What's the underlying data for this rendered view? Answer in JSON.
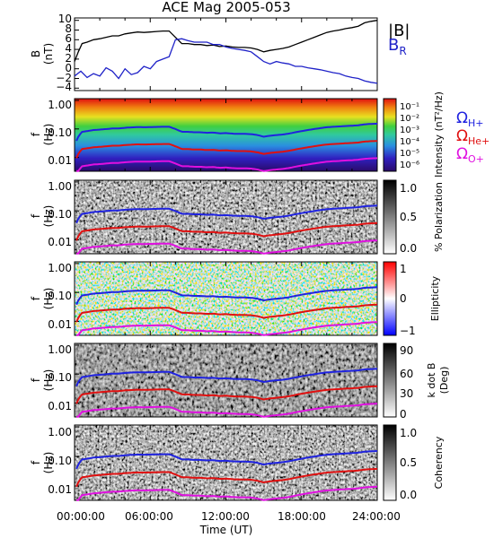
{
  "chart_data": {
    "title": "ACE Mag 2005-053",
    "type": "composite",
    "x": {
      "label": "Time (UT)",
      "range_hours": [
        0,
        24
      ],
      "tick_labels": [
        "00:00:00",
        "06:00:00",
        "12:00:00",
        "18:00:00",
        "24:00:00"
      ]
    },
    "panels": [
      {
        "type": "line",
        "ylabel": "B",
        "yunit": "(nT)",
        "ylim": [
          -4.5,
          10.5
        ],
        "yticks": [
          "10",
          "8",
          "6",
          "4",
          "2",
          "0",
          "−2",
          "−4"
        ],
        "yticks_values": [
          10,
          8,
          6,
          4,
          2,
          0,
          -2,
          -4
        ],
        "series": [
          {
            "name": "|B|",
            "color": "#000000",
            "x": [
              0,
              0.3,
              0.6,
              1,
              1.5,
              2,
              2.5,
              3,
              3.5,
              4,
              4.5,
              5,
              5.5,
              6,
              6.5,
              7,
              7.5,
              8,
              8.5,
              9,
              9.5,
              10,
              10.5,
              11,
              11.5,
              12,
              12.5,
              13,
              13.5,
              14,
              14.5,
              15,
              15.5,
              16,
              16.5,
              17,
              17.5,
              18,
              18.5,
              19,
              19.5,
              20,
              20.5,
              21,
              21.5,
              22,
              22.5,
              23,
              23.5,
              24
            ],
            "y": [
              1.5,
              3.5,
              5.2,
              5.5,
              6.0,
              6.2,
              6.5,
              6.8,
              6.8,
              7.2,
              7.4,
              7.6,
              7.5,
              7.6,
              7.7,
              7.8,
              7.8,
              6.5,
              5.2,
              5.2,
              5.0,
              5.0,
              4.8,
              4.9,
              4.6,
              4.7,
              4.5,
              4.4,
              4.4,
              4.3,
              4.0,
              3.5,
              3.8,
              4.0,
              4.2,
              4.5,
              5.0,
              5.5,
              6.0,
              6.5,
              7.0,
              7.5,
              7.8,
              8.0,
              8.3,
              8.5,
              8.8,
              9.5,
              9.8,
              10.0
            ]
          },
          {
            "name": "B_R",
            "color": "#1f22c8",
            "x": [
              0,
              0.5,
              1,
              1.5,
              2,
              2.5,
              3,
              3.5,
              4,
              4.5,
              5,
              5.5,
              6,
              6.5,
              7,
              7.5,
              8,
              8.5,
              9,
              9.5,
              10,
              10.5,
              11,
              11.5,
              12,
              12.5,
              13,
              13.5,
              14,
              14.5,
              15,
              15.5,
              16,
              16.5,
              17,
              17.5,
              18,
              18.5,
              19,
              19.5,
              20,
              20.5,
              21,
              21.5,
              22,
              22.5,
              23,
              23.5,
              24
            ],
            "y": [
              -1.5,
              -0.5,
              -1.8,
              -1.0,
              -1.5,
              0.2,
              -0.5,
              -2.0,
              0.0,
              -1.2,
              -0.8,
              0.5,
              0.0,
              1.5,
              2.0,
              2.5,
              6.0,
              6.2,
              5.8,
              5.5,
              5.5,
              5.5,
              5.0,
              5.0,
              4.5,
              4.2,
              4.0,
              3.8,
              3.5,
              2.5,
              1.5,
              1.0,
              1.5,
              1.2,
              1.0,
              0.5,
              0.5,
              0.2,
              0.0,
              -0.2,
              -0.5,
              -0.8,
              -1.0,
              -1.5,
              -1.8,
              -2.0,
              -2.5,
              -2.8,
              -3.0
            ]
          }
        ]
      },
      {
        "type": "heatmap",
        "quantity": "power",
        "ylabel": "f",
        "yunit": "(Hz)",
        "cbar_label": "Intensity (nT²/Hz)",
        "cbar_ticks": [
          "10⁻¹",
          "10⁻²",
          "10⁻³",
          "10⁻⁴",
          "10⁻⁵",
          "10⁻⁶"
        ]
      },
      {
        "type": "heatmap",
        "quantity": "polarization",
        "ylabel": "f",
        "yunit": "(Hz)",
        "cbar_label": "% Polarization",
        "cbar_ticks": [
          "1.0",
          "0.5",
          "0.0"
        ]
      },
      {
        "type": "heatmap",
        "quantity": "ellipticity",
        "ylabel": "f",
        "yunit": "(Hz)",
        "cbar_label": "Ellipticity",
        "cbar_ticks": [
          "1",
          "0",
          "−1"
        ]
      },
      {
        "type": "heatmap",
        "quantity": "angle",
        "ylabel": "f",
        "yunit": "(Hz)",
        "cbar_label": "k dot B",
        "cbar_unit": "(Deg)",
        "cbar_ticks": [
          "90",
          "60",
          "30",
          "0"
        ]
      },
      {
        "type": "heatmap",
        "quantity": "coherency",
        "ylabel": "f",
        "yunit": "(Hz)",
        "cbar_label": "Coherency",
        "cbar_ticks": [
          "1.0",
          "0.5",
          "0.0"
        ]
      }
    ],
    "spectrogram_yticks": [
      "1.00",
      "0.10",
      "0.01"
    ],
    "spectrogram_yticks_values": [
      1,
      0.1,
      0.01
    ],
    "spectrogram_ylim_hz": [
      0.0033,
      1.15
    ],
    "gyrofrequency_lines": [
      {
        "name": "Ω_H+",
        "label_base": "Ω",
        "label_sub": "H+",
        "color": "#1f22e0",
        "factor": 0.01525
      },
      {
        "name": "Ω_He+",
        "label_base": "Ω",
        "label_sub": "He+",
        "color": "#e01010",
        "factor": 0.0038
      },
      {
        "name": "Ω_O+",
        "label_base": "Ω",
        "label_sub": "O+",
        "color": "#e010e0",
        "factor": 0.00095
      }
    ],
    "legend": [
      {
        "text": "|B|",
        "sub": "",
        "color": "#000000"
      },
      {
        "text": "B",
        "sub": "R",
        "color": "#1f22c8"
      }
    ]
  }
}
